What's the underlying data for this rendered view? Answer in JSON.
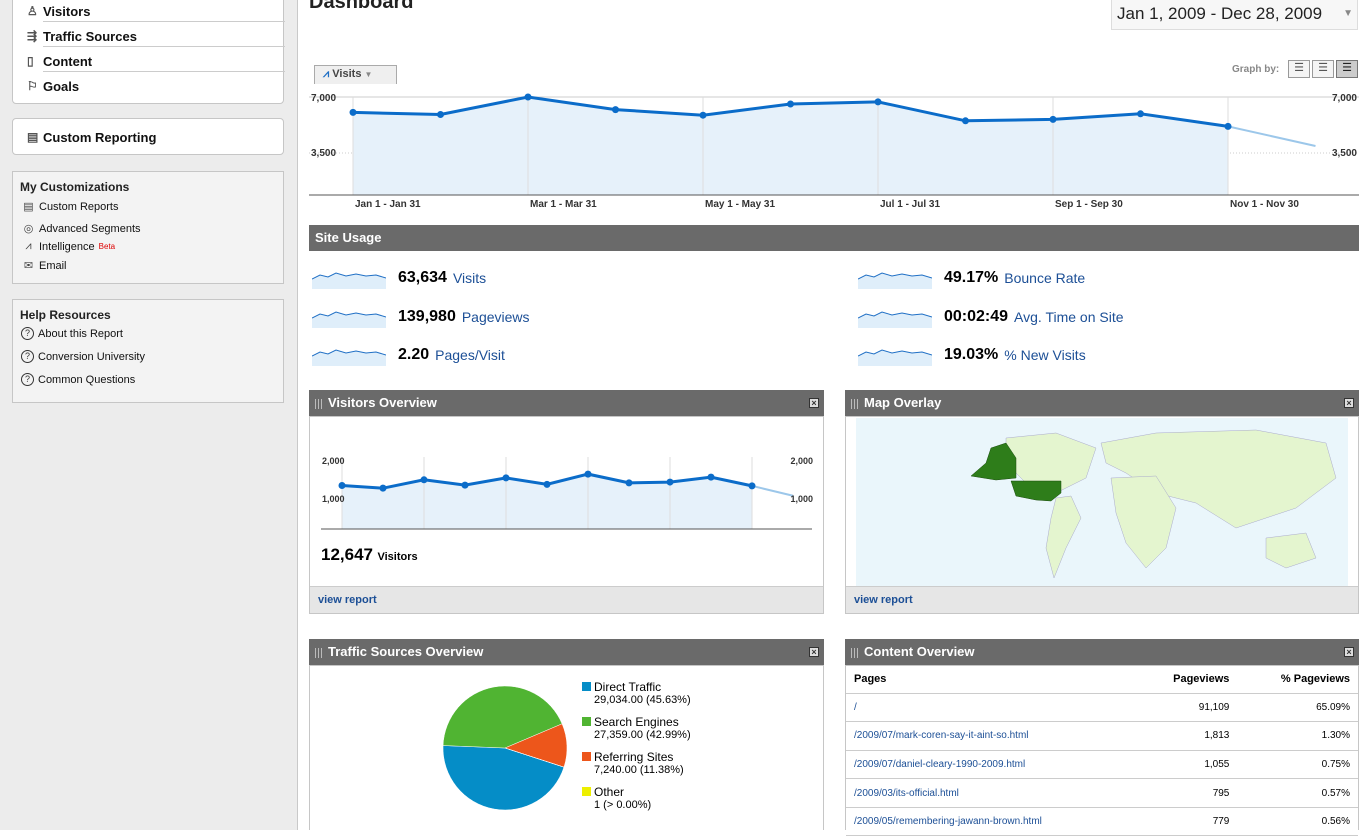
{
  "sidebar": {
    "nav": [
      "Visitors",
      "Traffic Sources",
      "Content",
      "Goals"
    ],
    "custom_reporting": "Custom Reporting",
    "customizations": {
      "title": "My Customizations",
      "items": [
        "Custom Reports",
        "Advanced Segments",
        "Intelligence",
        "Email"
      ],
      "beta": "Beta"
    },
    "help": {
      "title": "Help Resources",
      "items": [
        "About this Report",
        "Conversion University",
        "Common Questions"
      ]
    }
  },
  "header": {
    "title": "Dashboard",
    "date_range": "Jan 1, 2009 - Dec 28, 2009",
    "metric_dropdown": "Visits",
    "graph_by": "Graph by:"
  },
  "main_chart": {
    "type": "line",
    "series": [
      {
        "values": [
          5900,
          5750,
          7000,
          6100,
          5700,
          6500,
          6650,
          5300,
          5400,
          5800,
          4900,
          3500
        ]
      }
    ],
    "y_ticks": [
      "7,000",
      "3,500"
    ],
    "ylim": [
      0,
      7000
    ],
    "x_labels": [
      "Jan 1 - Jan 31",
      "Mar 1 - Mar 31",
      "May 1 - May 31",
      "Jul 1 - Jul 31",
      "Sep 1 - Sep 30",
      "Nov 1 - Nov 30"
    ]
  },
  "site_usage": {
    "title": "Site Usage",
    "metrics": [
      {
        "value": "63,634",
        "label": "Visits"
      },
      {
        "value": "139,980",
        "label": "Pageviews"
      },
      {
        "value": "2.20",
        "label": "Pages/Visit"
      },
      {
        "value": "49.17%",
        "label": "Bounce Rate"
      },
      {
        "value": "00:02:49",
        "label": "Avg. Time on Site"
      },
      {
        "value": "19.03%",
        "label": "% New Visits"
      }
    ]
  },
  "visitors_overview": {
    "title": "Visitors Overview",
    "chart_data": {
      "type": "line",
      "values": [
        1250,
        1180,
        1400,
        1260,
        1450,
        1280,
        1550,
        1320,
        1340,
        1470,
        1240,
        980
      ],
      "y_ticks": [
        "2,000",
        "1,000"
      ],
      "ylim": [
        0,
        2000
      ]
    },
    "total": "12,647",
    "total_label": "Visitors",
    "link": "view report"
  },
  "map_overlay": {
    "title": "Map Overlay",
    "link": "view report"
  },
  "traffic_sources": {
    "title": "Traffic Sources Overview",
    "chart_data": {
      "type": "pie",
      "slices": [
        {
          "name": "Direct Traffic",
          "value": 29034,
          "detail": "29,034.00 (45.63%)",
          "color": "#058dc7"
        },
        {
          "name": "Search Engines",
          "value": 27359,
          "detail": "27,359.00 (42.99%)",
          "color": "#50b432"
        },
        {
          "name": "Referring Sites",
          "value": 7240,
          "detail": "7,240.00 (11.38%)",
          "color": "#ed561b"
        },
        {
          "name": "Other",
          "value": 1,
          "detail": "1 (> 0.00%)",
          "color": "#edef00"
        }
      ]
    }
  },
  "content_overview": {
    "title": "Content Overview",
    "headers": [
      "Pages",
      "Pageviews",
      "% Pageviews"
    ],
    "rows": [
      [
        "/",
        "91,109",
        "65.09%"
      ],
      [
        "/2009/07/mark-coren-say-it-aint-so.html",
        "1,813",
        "1.30%"
      ],
      [
        "/2009/07/daniel-cleary-1990-2009.html",
        "1,055",
        "0.75%"
      ],
      [
        "/2009/03/its-official.html",
        "795",
        "0.57%"
      ],
      [
        "/2009/05/remembering-jawann-brown.html",
        "779",
        "0.56%"
      ]
    ]
  }
}
